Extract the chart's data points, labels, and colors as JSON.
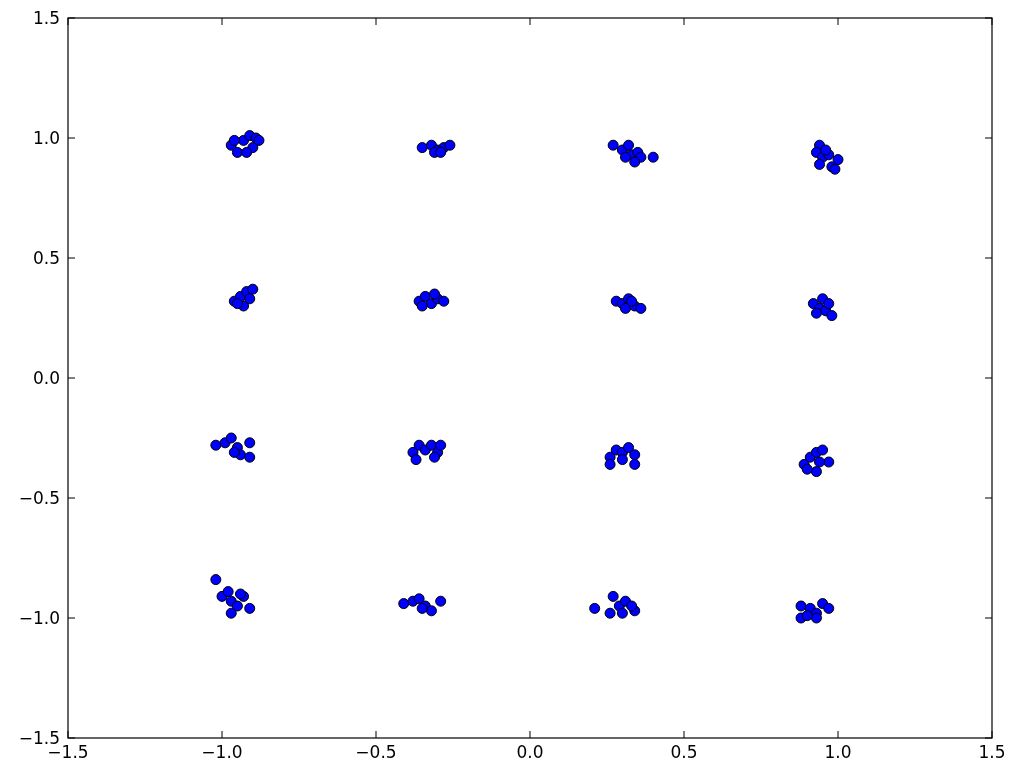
{
  "chart_data": {
    "type": "scatter",
    "marker": "circle",
    "xlim": [
      -1.5,
      1.5
    ],
    "ylim": [
      -1.5,
      1.5
    ],
    "xticks": [
      {
        "value": -1.5,
        "label": "−1.5"
      },
      {
        "value": -1.0,
        "label": "−1.0"
      },
      {
        "value": -0.5,
        "label": "−0.5"
      },
      {
        "value": 0,
        "label": "0.0"
      },
      {
        "value": 0.5,
        "label": "0.5"
      },
      {
        "value": 1.0,
        "label": "1.0"
      },
      {
        "value": 1.5,
        "label": "1.5"
      }
    ],
    "yticks": [
      {
        "value": -1.5,
        "label": "−1.5"
      },
      {
        "value": -1.0,
        "label": "−1.0"
      },
      {
        "value": -0.5,
        "label": "−0.5"
      },
      {
        "value": 0,
        "label": "0.0"
      },
      {
        "value": 0.5,
        "label": "0.5"
      },
      {
        "value": 1.0,
        "label": "1.0"
      },
      {
        "value": 1.5,
        "label": "1.5"
      }
    ],
    "series": [
      {
        "color": "#0000ff",
        "x": [
          -0.97,
          -0.95,
          -0.93,
          -0.91,
          -0.89,
          -0.9,
          -0.96,
          -0.92,
          -0.88,
          -0.35,
          -0.32,
          -0.3,
          -0.28,
          -0.31,
          -0.26,
          -0.29,
          0.27,
          0.3,
          0.32,
          0.33,
          0.35,
          0.36,
          0.4,
          0.31,
          0.34,
          0.94,
          0.93,
          0.95,
          0.97,
          1.0,
          0.98,
          0.99,
          0.94,
          0.96,
          -0.96,
          -0.94,
          -0.93,
          -0.92,
          -0.9,
          -0.95,
          -0.91,
          -0.36,
          -0.34,
          -0.32,
          -0.3,
          -0.28,
          -0.35,
          -0.31,
          0.28,
          0.3,
          0.32,
          0.31,
          0.34,
          0.36,
          0.33,
          0.92,
          0.94,
          0.95,
          0.96,
          0.98,
          0.93,
          0.97,
          -1.02,
          -0.99,
          -0.97,
          -0.95,
          -0.94,
          -0.91,
          -0.91,
          -0.96,
          -0.38,
          -0.36,
          -0.34,
          -0.32,
          -0.3,
          -0.29,
          -0.37,
          -0.31,
          0.26,
          0.28,
          0.3,
          0.32,
          0.34,
          0.26,
          0.34,
          0.3,
          0.89,
          0.91,
          0.93,
          0.95,
          0.97,
          0.93,
          0.9,
          0.94,
          -1.02,
          -1.0,
          -0.98,
          -0.97,
          -0.95,
          -0.93,
          -0.91,
          -0.97,
          -0.94,
          -0.41,
          -0.38,
          -0.36,
          -0.34,
          -0.32,
          -0.29,
          -0.35,
          0.21,
          0.27,
          0.29,
          0.31,
          0.3,
          0.26,
          0.34,
          0.33,
          0.88,
          0.88,
          0.91,
          0.93,
          0.93,
          0.95,
          0.97,
          0.9
        ],
        "values": [
          0.97,
          0.94,
          0.99,
          1.01,
          1.0,
          0.96,
          0.99,
          0.94,
          0.99,
          0.96,
          0.97,
          0.95,
          0.96,
          0.94,
          0.97,
          0.94,
          0.97,
          0.95,
          0.97,
          0.93,
          0.94,
          0.92,
          0.92,
          0.92,
          0.9,
          0.97,
          0.94,
          0.92,
          0.93,
          0.91,
          0.88,
          0.87,
          0.89,
          0.95,
          0.32,
          0.34,
          0.3,
          0.36,
          0.37,
          0.31,
          0.33,
          0.32,
          0.34,
          0.31,
          0.33,
          0.32,
          0.3,
          0.35,
          0.32,
          0.31,
          0.33,
          0.29,
          0.3,
          0.29,
          0.32,
          0.31,
          0.29,
          0.33,
          0.28,
          0.26,
          0.27,
          0.31,
          -0.28,
          -0.27,
          -0.25,
          -0.29,
          -0.32,
          -0.27,
          -0.33,
          -0.31,
          -0.31,
          -0.28,
          -0.3,
          -0.28,
          -0.31,
          -0.28,
          -0.34,
          -0.33,
          -0.33,
          -0.3,
          -0.31,
          -0.29,
          -0.32,
          -0.36,
          -0.36,
          -0.34,
          -0.36,
          -0.33,
          -0.31,
          -0.3,
          -0.35,
          -0.39,
          -0.38,
          -0.35,
          -0.84,
          -0.91,
          -0.89,
          -0.93,
          -0.95,
          -0.91,
          -0.96,
          -0.98,
          -0.9,
          -0.94,
          -0.93,
          -0.92,
          -0.95,
          -0.97,
          -0.93,
          -0.96,
          -0.96,
          -0.91,
          -0.95,
          -0.93,
          -0.98,
          -0.98,
          -0.97,
          -0.95,
          -0.95,
          -1.0,
          -0.96,
          -0.98,
          -1.0,
          -0.94,
          -0.96,
          -0.99
        ]
      }
    ]
  }
}
